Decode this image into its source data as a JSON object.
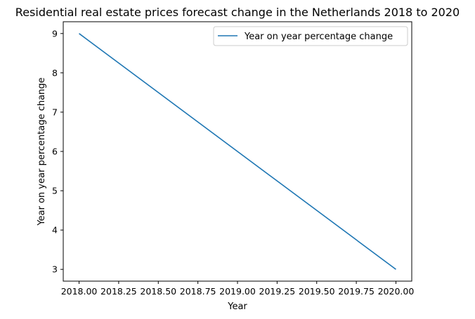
{
  "chart_data": {
    "type": "line",
    "title": "Residential real estate prices forecast change in the Netherlands 2018 to 2020",
    "xlabel": "Year",
    "ylabel": "Year on year percentage change",
    "x": [
      2018,
      2020
    ],
    "series": [
      {
        "name": "Year on year percentage change",
        "values": [
          9,
          3
        ],
        "color": "#1f77b4"
      }
    ],
    "xlim": [
      2017.9,
      2020.1
    ],
    "ylim": [
      2.7,
      9.3
    ],
    "x_ticks": [
      2018.0,
      2018.25,
      2018.5,
      2018.75,
      2019.0,
      2019.25,
      2019.5,
      2019.75,
      2020.0
    ],
    "x_tick_labels": [
      "2018.00",
      "2018.25",
      "2018.50",
      "2018.75",
      "2019.00",
      "2019.25",
      "2019.50",
      "2019.75",
      "2020.00"
    ],
    "y_ticks": [
      3,
      4,
      5,
      6,
      7,
      8,
      9
    ],
    "y_tick_labels": [
      "3",
      "4",
      "5",
      "6",
      "7",
      "8",
      "9"
    ],
    "grid": false,
    "legend": "top-right"
  }
}
